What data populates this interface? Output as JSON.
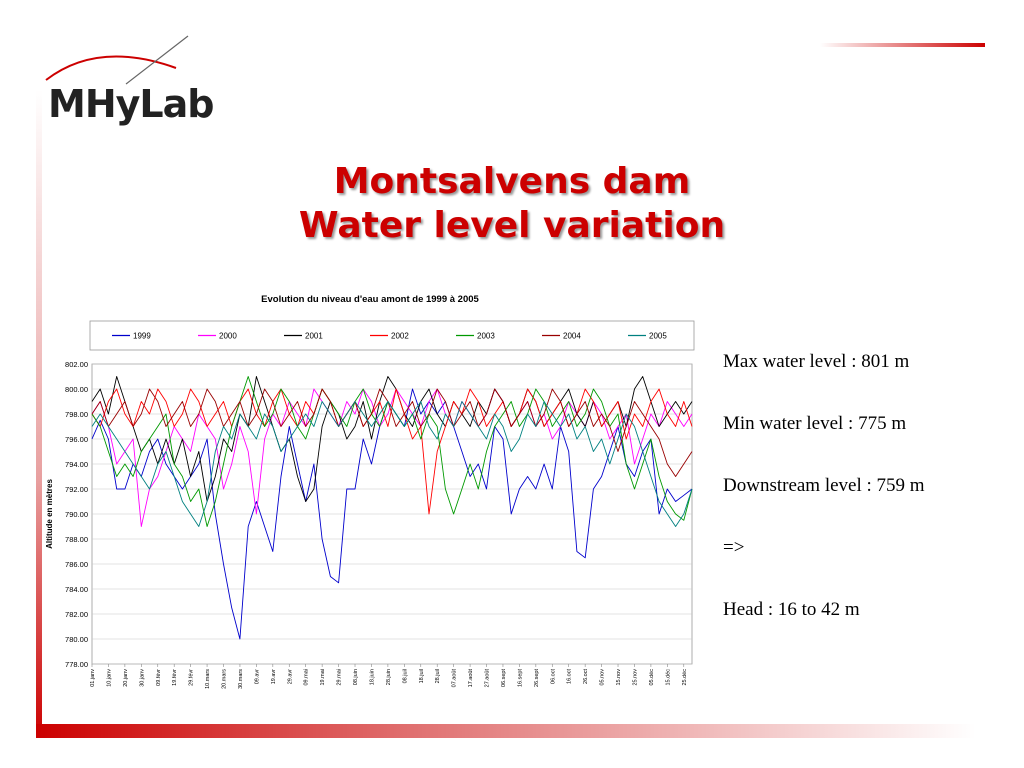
{
  "logo": {
    "text": "MHyLab"
  },
  "title": {
    "line1": "Montsalvens dam",
    "line2": "Water level variation"
  },
  "notes": [
    "Max water level : 801 m",
    "Min water level : 775 m",
    "Downstream level : 759 m",
    "=>",
    "Head : 16 to 42 m"
  ],
  "colors": {
    "accent": "#cc0000",
    "title": "#cc0000"
  },
  "chart_data": {
    "type": "line",
    "title": "Evolution du niveau d'eau amont de 1999 à 2005",
    "xlabel": "",
    "ylabel": "Altitude en mètres",
    "ylim": [
      778,
      802
    ],
    "y_ticks": [
      "778.00",
      "780.00",
      "782.00",
      "784.00",
      "786.00",
      "788.00",
      "790.00",
      "792.00",
      "794.00",
      "796.00",
      "798.00",
      "800.00",
      "802.00"
    ],
    "x_ticks": [
      "01.janv",
      "10.janv",
      "20.janv",
      "30.janv",
      "09.févr",
      "19.févr",
      "29.févr",
      "10.mars",
      "20.mars",
      "30.mars",
      "09.avr",
      "19.avr",
      "29.avr",
      "09.mai",
      "19.mai",
      "29.mai",
      "08.juin",
      "18.juin",
      "28.juin",
      "08.juil",
      "18.juil",
      "28.juil",
      "07.août",
      "17.août",
      "27.août",
      "06.sept",
      "16.sept",
      "26.sept",
      "06.oct",
      "16.oct",
      "26.oct",
      "05.nov",
      "15.nov",
      "25.nov",
      "05.déc",
      "15.déc",
      "25.déc"
    ],
    "grid": true,
    "legend": "top",
    "series": [
      {
        "name": "1999",
        "color": "#0000cc",
        "x": [
          0,
          5,
          10,
          15,
          20,
          25,
          30,
          35,
          40,
          45,
          50,
          55,
          60,
          65,
          70,
          75,
          80,
          85,
          90,
          95,
          100,
          105,
          110,
          115,
          120,
          125,
          130,
          135,
          140,
          145,
          150,
          155,
          160,
          165,
          170,
          175,
          180,
          185,
          190,
          195,
          200,
          205,
          210,
          215,
          220,
          225,
          230,
          235,
          240,
          245,
          250,
          255,
          260,
          265,
          270,
          275,
          280,
          285,
          290,
          295,
          300,
          305,
          310,
          315,
          320,
          325,
          330,
          335,
          340,
          345,
          350,
          355,
          360,
          365
        ],
        "y": [
          796,
          797.5,
          796,
          792,
          792,
          794,
          793,
          795,
          796,
          794,
          793,
          792,
          793,
          794,
          796,
          790,
          786,
          782.5,
          780,
          789,
          791,
          789,
          787,
          793,
          797,
          794,
          791,
          794,
          788,
          785,
          784.5,
          792,
          792,
          796,
          794,
          797,
          799,
          798,
          797,
          800,
          798,
          799,
          798,
          799,
          797,
          795,
          793,
          794,
          792,
          797,
          796,
          790,
          792,
          793,
          792,
          794,
          792,
          797,
          795,
          787,
          786.5,
          792,
          793,
          795,
          797,
          794,
          793,
          795,
          796,
          790,
          792,
          791,
          791.5,
          792
        ]
      },
      {
        "name": "2000",
        "color": "#ff00ff",
        "x": [
          0,
          5,
          10,
          15,
          20,
          25,
          30,
          35,
          40,
          45,
          50,
          55,
          60,
          65,
          70,
          75,
          80,
          85,
          90,
          95,
          100,
          105,
          110,
          115,
          120,
          125,
          130,
          135,
          140,
          145,
          150,
          155,
          160,
          165,
          170,
          175,
          180,
          185,
          190,
          195,
          200,
          205,
          210,
          215,
          220,
          225,
          230,
          235,
          240,
          245,
          250,
          255,
          260,
          265,
          270,
          275,
          280,
          285,
          290,
          295,
          300,
          305,
          310,
          315,
          320,
          325,
          330,
          335,
          340,
          345,
          350,
          355,
          360,
          365
        ],
        "y": [
          798,
          799,
          797,
          794,
          795,
          796,
          789,
          792,
          793,
          795,
          797,
          796,
          795,
          798,
          797,
          796,
          792,
          794,
          797,
          795,
          790,
          796,
          798,
          797,
          799,
          798,
          797,
          800,
          799,
          798,
          797,
          799,
          798,
          800,
          799,
          797,
          798,
          800,
          799,
          798,
          797,
          799,
          800,
          798,
          797,
          799,
          798,
          797,
          798,
          800,
          799,
          797,
          798,
          799,
          797,
          798,
          796,
          797,
          799,
          798,
          797,
          799,
          798,
          796,
          797,
          798,
          794,
          796,
          798,
          797,
          799,
          798,
          797,
          798
        ]
      },
      {
        "name": "2001",
        "color": "#000000",
        "x": [
          0,
          5,
          10,
          15,
          20,
          25,
          30,
          35,
          40,
          45,
          50,
          55,
          60,
          65,
          70,
          75,
          80,
          85,
          90,
          95,
          100,
          105,
          110,
          115,
          120,
          125,
          130,
          135,
          140,
          145,
          150,
          155,
          160,
          165,
          170,
          175,
          180,
          185,
          190,
          195,
          200,
          205,
          210,
          215,
          220,
          225,
          230,
          235,
          240,
          245,
          250,
          255,
          260,
          265,
          270,
          275,
          280,
          285,
          290,
          295,
          300,
          305,
          310,
          315,
          320,
          325,
          330,
          335,
          340,
          345,
          350,
          355,
          360,
          365
        ],
        "y": [
          799,
          800,
          798,
          801,
          799,
          797,
          795,
          796,
          794,
          796,
          794,
          796,
          793,
          795,
          791,
          793,
          796,
          795,
          798,
          797,
          801,
          799,
          797,
          795,
          796,
          793,
          791,
          792,
          797,
          799,
          798,
          796,
          797,
          799,
          796,
          799,
          801,
          800,
          798,
          797,
          799,
          800,
          798,
          797,
          799,
          798,
          797,
          799,
          798,
          800,
          799,
          797,
          798,
          800,
          799,
          797,
          798,
          799,
          800,
          798,
          797,
          799,
          797,
          798,
          799,
          797,
          800,
          801,
          799,
          797,
          798,
          799,
          798,
          799
        ]
      },
      {
        "name": "2002",
        "color": "#ff0000",
        "x": [
          0,
          5,
          10,
          15,
          20,
          25,
          30,
          35,
          40,
          45,
          50,
          55,
          60,
          65,
          70,
          75,
          80,
          85,
          90,
          95,
          100,
          105,
          110,
          115,
          120,
          125,
          130,
          135,
          140,
          145,
          150,
          155,
          160,
          165,
          170,
          175,
          180,
          185,
          190,
          195,
          200,
          205,
          210,
          215,
          220,
          225,
          230,
          235,
          240,
          245,
          250,
          255,
          260,
          265,
          270,
          275,
          280,
          285,
          290,
          295,
          300,
          305,
          310,
          315,
          320,
          325,
          330,
          335,
          340,
          345,
          350,
          355,
          360,
          365
        ],
        "y": [
          798,
          797,
          799,
          800,
          798,
          797,
          799,
          798,
          800,
          799,
          797,
          798,
          800,
          799,
          797,
          798,
          799,
          797,
          799,
          800,
          798,
          797,
          799,
          800,
          798,
          797,
          799,
          798,
          800,
          799,
          797,
          798,
          799,
          797,
          798,
          799,
          797,
          800,
          798,
          796,
          797,
          790,
          795,
          797,
          799,
          798,
          800,
          799,
          797,
          798,
          799,
          797,
          798,
          800,
          799,
          797,
          798,
          799,
          797,
          798,
          800,
          799,
          797,
          798,
          799,
          796,
          798,
          797,
          799,
          800,
          798,
          797,
          799,
          797
        ]
      },
      {
        "name": "2003",
        "color": "#009900",
        "x": [
          0,
          5,
          10,
          15,
          20,
          25,
          30,
          35,
          40,
          45,
          50,
          55,
          60,
          65,
          70,
          75,
          80,
          85,
          90,
          95,
          100,
          105,
          110,
          115,
          120,
          125,
          130,
          135,
          140,
          145,
          150,
          155,
          160,
          165,
          170,
          175,
          180,
          185,
          190,
          195,
          200,
          205,
          210,
          215,
          220,
          225,
          230,
          235,
          240,
          245,
          250,
          255,
          260,
          265,
          270,
          275,
          280,
          285,
          290,
          295,
          300,
          305,
          310,
          315,
          320,
          325,
          330,
          335,
          340,
          345,
          350,
          355,
          360,
          365
        ],
        "y": [
          798,
          797,
          795,
          793,
          794,
          793,
          795,
          796,
          797,
          798,
          794,
          793,
          791,
          792,
          789,
          791,
          794,
          797,
          799,
          801,
          799,
          797,
          798,
          800,
          799,
          797,
          796,
          798,
          800,
          799,
          798,
          797,
          799,
          800,
          798,
          797,
          799,
          798,
          797,
          798,
          796,
          798,
          797,
          792,
          790,
          792,
          794,
          792,
          795,
          797,
          798,
          799,
          797,
          798,
          800,
          799,
          797,
          798,
          799,
          797,
          798,
          800,
          799,
          797,
          798,
          794,
          792,
          794,
          796,
          793,
          791,
          790,
          789.5,
          792
        ]
      },
      {
        "name": "2004",
        "color": "#990000",
        "x": [
          0,
          5,
          10,
          15,
          20,
          25,
          30,
          35,
          40,
          45,
          50,
          55,
          60,
          65,
          70,
          75,
          80,
          85,
          90,
          95,
          100,
          105,
          110,
          115,
          120,
          125,
          130,
          135,
          140,
          145,
          150,
          155,
          160,
          165,
          170,
          175,
          180,
          185,
          190,
          195,
          200,
          205,
          210,
          215,
          220,
          225,
          230,
          235,
          240,
          245,
          250,
          255,
          260,
          265,
          270,
          275,
          280,
          285,
          290,
          295,
          300,
          305,
          310,
          315,
          320,
          325,
          330,
          335,
          340,
          345,
          350,
          355,
          360,
          365
        ],
        "y": [
          798,
          799,
          797,
          798,
          799,
          797,
          798,
          800,
          799,
          797,
          798,
          799,
          797,
          798,
          800,
          799,
          797,
          798,
          799,
          797,
          798,
          800,
          799,
          797,
          798,
          799,
          797,
          798,
          800,
          799,
          797,
          798,
          799,
          797,
          798,
          800,
          799,
          797,
          798,
          799,
          797,
          798,
          800,
          799,
          797,
          798,
          799,
          797,
          798,
          800,
          799,
          797,
          798,
          799,
          797,
          798,
          800,
          799,
          797,
          798,
          799,
          797,
          798,
          797,
          795,
          797,
          799,
          798,
          797,
          796,
          794,
          793,
          794,
          795
        ]
      },
      {
        "name": "2005",
        "color": "#008080",
        "x": [
          0,
          5,
          10,
          15,
          20,
          25,
          30,
          35,
          40,
          45,
          50,
          55,
          60,
          65,
          70,
          75,
          80,
          85,
          90,
          95,
          100,
          105,
          110,
          115,
          120,
          125,
          130,
          135,
          140,
          145,
          150,
          155,
          160,
          165,
          170,
          175,
          180,
          185,
          190,
          195,
          200,
          205,
          210,
          215,
          220,
          225,
          230,
          235,
          240,
          245,
          250,
          255,
          260,
          265,
          270,
          275,
          280,
          285,
          290,
          295,
          300,
          305,
          310,
          315,
          320,
          325,
          330,
          335,
          340,
          345,
          350,
          355,
          360,
          365
        ],
        "y": [
          797,
          798,
          797,
          796,
          795,
          794,
          793,
          792,
          794,
          795,
          793,
          791,
          790,
          789,
          791,
          795,
          797,
          796,
          798,
          797,
          796,
          798,
          797,
          795,
          796,
          797,
          798,
          797,
          799,
          798,
          797,
          798,
          799,
          798,
          797,
          798,
          799,
          798,
          797,
          798,
          799,
          797,
          796,
          798,
          797,
          799,
          798,
          797,
          796,
          798,
          797,
          795,
          796,
          798,
          797,
          799,
          798,
          797,
          798,
          796,
          797,
          795,
          796,
          794,
          796,
          798,
          797,
          795,
          793,
          791,
          790,
          789,
          790,
          792
        ]
      }
    ]
  }
}
